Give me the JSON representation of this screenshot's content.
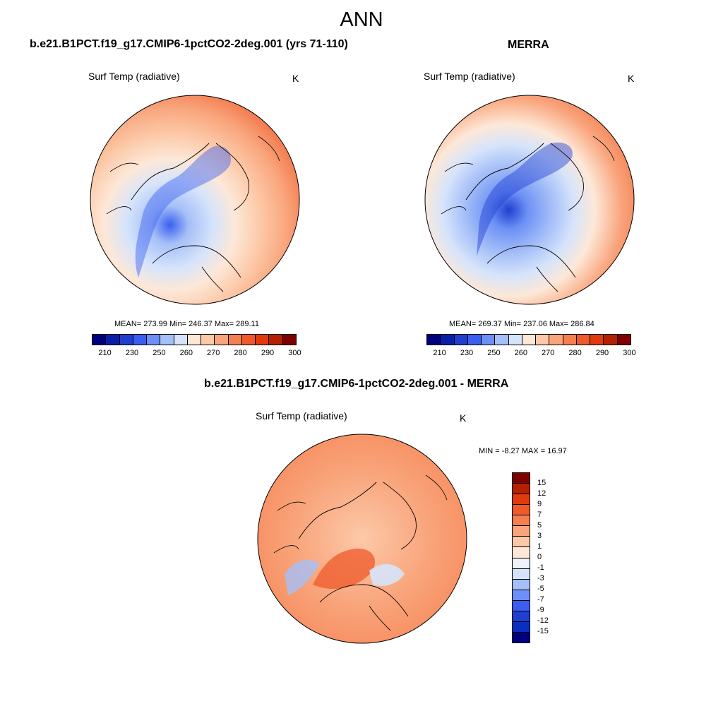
{
  "title": "ANN",
  "panels": [
    {
      "title": "b.e21.B1PCT.f19_g17.CMIP6-1pctCO2-2deg.001 (yrs 71-110)",
      "variable": "Surf Temp (radiative)",
      "units": "K",
      "stats": "MEAN= 273.99  Min= 246.37  Max= 289.11",
      "mean": 273.99,
      "min": 246.37,
      "max": 289.11
    },
    {
      "title": "MERRA",
      "variable": "Surf Temp (radiative)",
      "units": "K",
      "stats": "MEAN= 269.37  Min= 237.06  Max= 286.84",
      "mean": 269.37,
      "min": 237.06,
      "max": 286.84
    },
    {
      "title": "b.e21.B1PCT.f19_g17.CMIP6-1pctCO2-2deg.001 - MERRA",
      "variable": "Surf Temp (radiative)",
      "units": "K",
      "stats": "MIN =  -8.27 MAX =  16.97",
      "min": -8.27,
      "max": 16.97
    }
  ],
  "colorbar_abs": {
    "colors": [
      "#00007f",
      "#0a1fa8",
      "#1f3fd0",
      "#3a5ff0",
      "#6c90f5",
      "#a5bff8",
      "#d6e4fb",
      "#fde8d8",
      "#fcc9a8",
      "#f9a57c",
      "#f5804f",
      "#ef5a2a",
      "#df3b0f",
      "#b42000",
      "#7f0000"
    ],
    "labels": [
      "210",
      "230",
      "250",
      "260",
      "270",
      "280",
      "290",
      "300"
    ]
  },
  "colorbar_diff": {
    "colors": [
      "#7f0000",
      "#b42000",
      "#df3b0f",
      "#ef5a2a",
      "#f5804f",
      "#f9a57c",
      "#fcc9a8",
      "#fde8d8",
      "#eef3fc",
      "#d6e4fb",
      "#a5bff8",
      "#6c90f5",
      "#3a5ff0",
      "#1f3fd0",
      "#0a2fc0",
      "#00007f"
    ],
    "labels": [
      "15",
      "12",
      "9",
      "7",
      "5",
      "3",
      "1",
      "0",
      "-1",
      "-3",
      "-5",
      "-7",
      "-9",
      "-12",
      "-15"
    ]
  }
}
